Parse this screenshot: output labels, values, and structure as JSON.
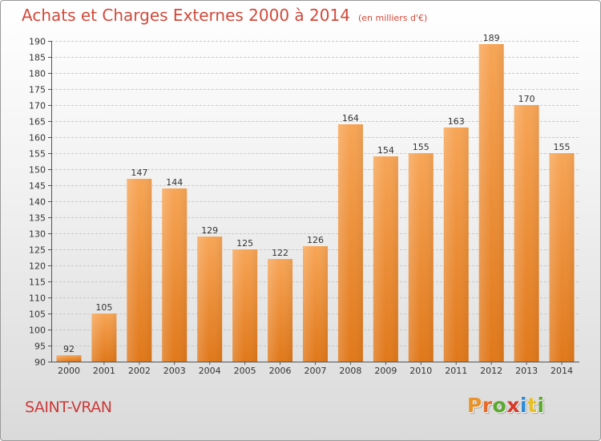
{
  "title": "Achats et Charges Externes 2000 à 2014",
  "subtitle": "(en milliers d'€)",
  "commune": "SAINT-VRAN",
  "logo": {
    "letters": [
      "P",
      "r",
      "o",
      "x",
      "i",
      "t",
      "i"
    ],
    "colors": [
      "#e8922a",
      "#e86a2a",
      "#5aa830",
      "#d83a2a",
      "#2a8ad8",
      "#e8c02a",
      "#5aa830"
    ]
  },
  "colors": {
    "bar": "#f0902e",
    "bar_light": "#f7a95a",
    "title": "#d2493a",
    "grid": "#c8c8c8"
  },
  "chart_data": {
    "type": "bar",
    "categories": [
      "2000",
      "2001",
      "2002",
      "2003",
      "2004",
      "2005",
      "2006",
      "2007",
      "2008",
      "2009",
      "2010",
      "2011",
      "2012",
      "2013",
      "2014"
    ],
    "values": [
      92,
      105,
      147,
      144,
      129,
      125,
      122,
      126,
      164,
      154,
      155,
      163,
      189,
      170,
      155
    ],
    "ylim": [
      90,
      190
    ],
    "yticks": [
      90,
      95,
      100,
      105,
      110,
      115,
      120,
      125,
      130,
      135,
      140,
      145,
      150,
      155,
      160,
      165,
      170,
      175,
      180,
      185,
      190
    ],
    "grid": true,
    "xlabel": "",
    "ylabel": ""
  }
}
